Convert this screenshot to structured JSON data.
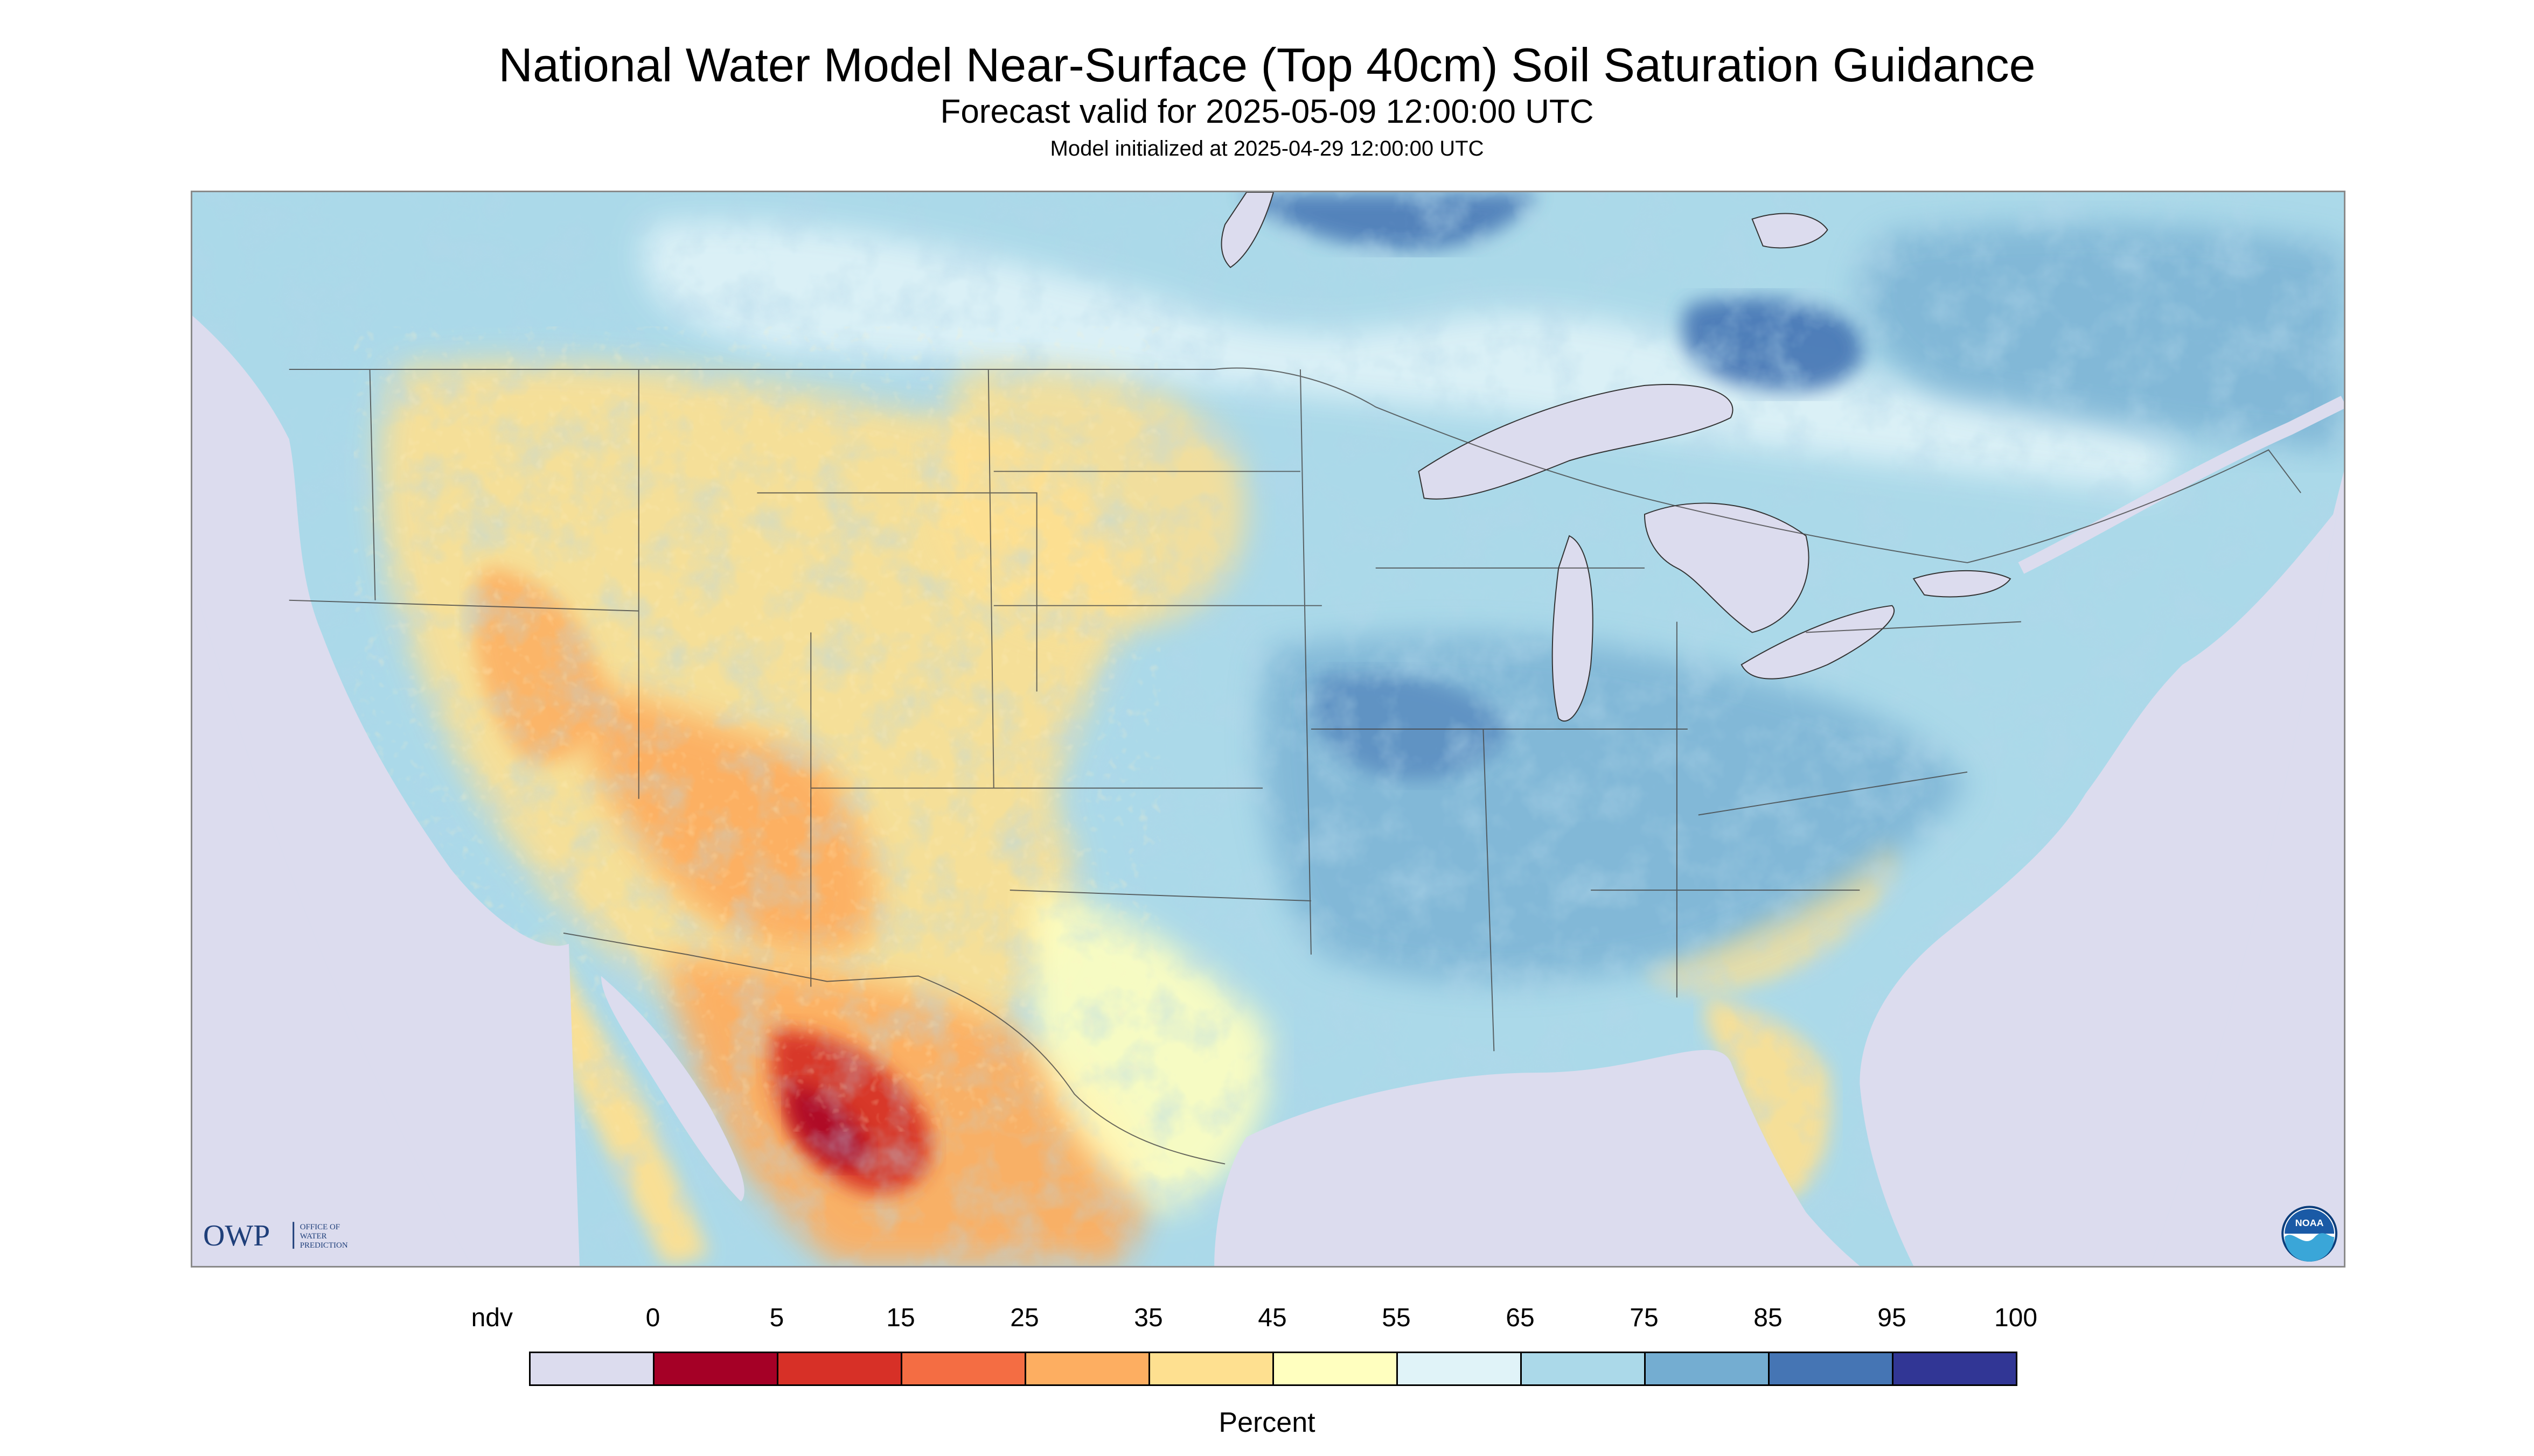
{
  "title": "National Water Model Near-Surface (Top 40cm) Soil Saturation Guidance",
  "subtitle": "Forecast valid for 2025-05-09 12:00:00 UTC",
  "subsubtitle": "Model initialized at 2025-04-29 12:00:00 UTC",
  "logos": {
    "owp_text": "OWP",
    "owp_subtext": [
      "OFFICE OF",
      "WATER",
      "PREDICTION"
    ],
    "noaa_text": "NOAA"
  },
  "legend": {
    "units": "Percent",
    "labels": [
      "ndv",
      "0",
      "5",
      "15",
      "25",
      "35",
      "45",
      "55",
      "65",
      "75",
      "85",
      "95",
      "100"
    ],
    "colors": [
      "#dcdcee",
      "#a50026",
      "#d73027",
      "#f46d43",
      "#fdae61",
      "#fee090",
      "#ffffbf",
      "#e0f3f8",
      "#abd9e9",
      "#74add1",
      "#4575b4",
      "#313695"
    ]
  },
  "map": {
    "projection": "Lambert Conformal (CONUS)",
    "nodata_color": "#dcdcee",
    "water_color": "#dcdcee"
  }
}
